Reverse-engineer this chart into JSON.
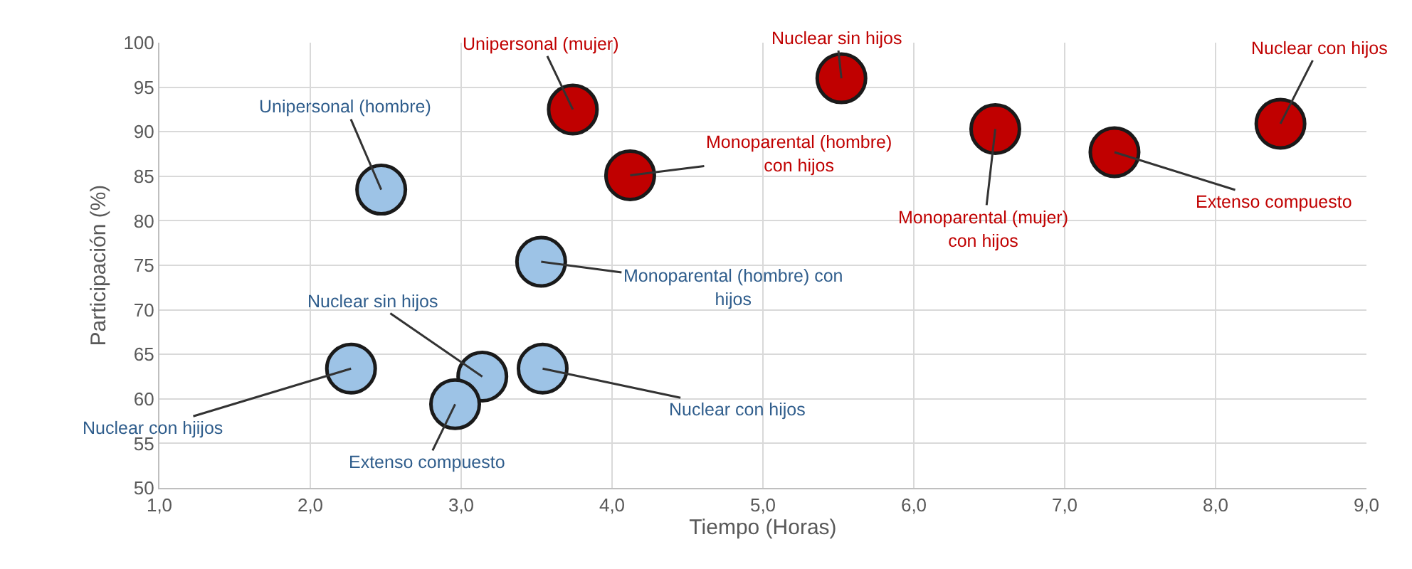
{
  "chart_data": {
    "type": "scatter",
    "xlabel": "Tiempo (Horas)",
    "ylabel": "Participación (%)",
    "series": [
      {
        "color": "#9dc3e6",
        "x": [
          2.47,
          3.53,
          2.27,
          3.14,
          2.96,
          3.54
        ],
        "values": [
          83.5,
          75.4,
          63.4,
          62.5,
          59.4,
          63.4
        ]
      },
      {
        "color": "#c00000",
        "x": [
          3.74,
          4.12,
          5.52,
          6.54,
          7.33,
          8.43
        ],
        "values": [
          92.5,
          85.1,
          96,
          90.3,
          87.7,
          90.9
        ]
      }
    ],
    "xlim": [
      1,
      9
    ],
    "xticks": [
      {
        "value": 1,
        "label": "1,0"
      },
      {
        "value": 2,
        "label": "2,0"
      },
      {
        "value": 3,
        "label": "3,0"
      },
      {
        "value": 4,
        "label": "4,0"
      },
      {
        "value": 5,
        "label": "5,0"
      },
      {
        "value": 6,
        "label": "6,0"
      },
      {
        "value": 7,
        "label": "7,0"
      },
      {
        "value": 8,
        "label": "8,0"
      },
      {
        "value": 9,
        "label": "9,0"
      }
    ],
    "ylim": [
      50,
      100
    ],
    "yticks": [
      50,
      55,
      60,
      65,
      70,
      75,
      80,
      85,
      90,
      95,
      100
    ],
    "grid": true,
    "marker": "circle",
    "annotations": [
      {
        "text": "Unipersonal (hombre)",
        "x": 2.47,
        "y": 83.5
      },
      {
        "text": "Monoparental (hombre) con\nhijos",
        "x": 3.53,
        "y": 75.4
      },
      {
        "text": "Nuclear con hjijos",
        "x": 2.27,
        "y": 63.4
      },
      {
        "text": "Nuclear sin hijos",
        "x": 3.14,
        "y": 62.5
      },
      {
        "text": "Extenso compuesto",
        "x": 2.96,
        "y": 59.4
      },
      {
        "text": "Nuclear con hijos",
        "x": 3.54,
        "y": 63.4
      },
      {
        "text": "Unipersonal (mujer)",
        "x": 3.74,
        "y": 92.5
      },
      {
        "text": "Monoparental (hombre)\ncon hijos",
        "x": 4.12,
        "y": 85.1
      },
      {
        "text": "Nuclear sin hijos",
        "x": 5.52,
        "y": 96
      },
      {
        "text": "Monoparental (mujer)\ncon hijos",
        "x": 6.54,
        "y": 90.3
      },
      {
        "text": "Extenso compuesto",
        "x": 7.33,
        "y": 87.7
      },
      {
        "text": "Nuclear con hijos",
        "x": 8.43,
        "y": 90.9
      }
    ]
  }
}
